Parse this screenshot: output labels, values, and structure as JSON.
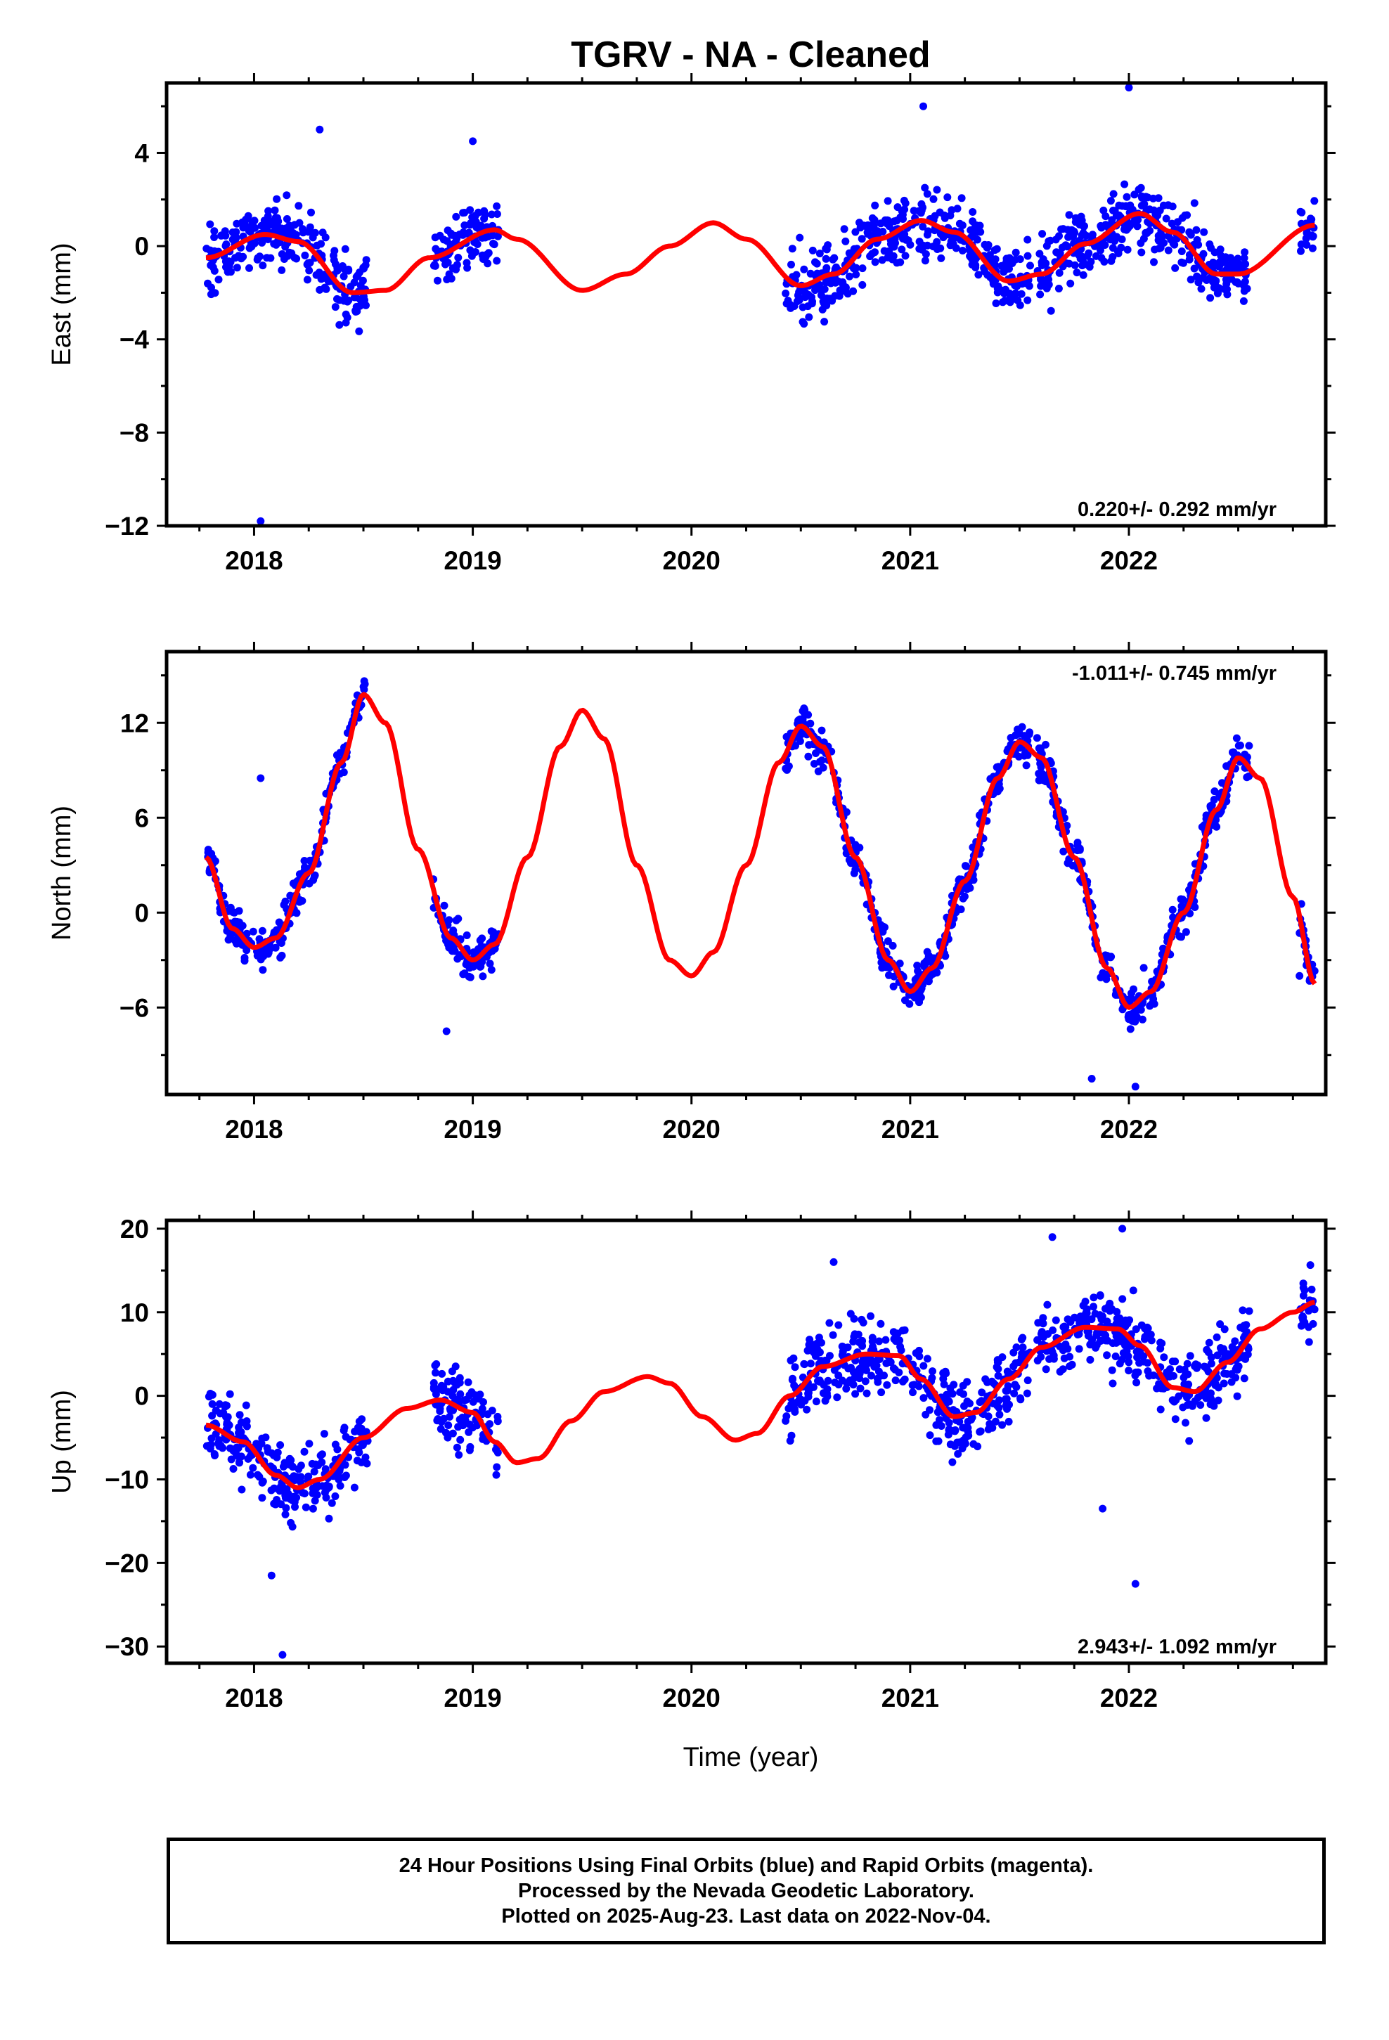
{
  "title": "TGRV  - NA - Cleaned",
  "xlabel": "Time (year)",
  "footer": {
    "line1": "24 Hour Positions Using Final Orbits (blue) and Rapid Orbits (magenta).",
    "line2": "Processed by the Nevada Geodetic Laboratory.",
    "line3": "Plotted on 2025-Aug-23. Last data on 2022-Nov-04."
  },
  "colors": {
    "points": "#0000ff",
    "fit": "#ff0000",
    "frame": "#000000"
  },
  "chart_data": [
    {
      "type": "scatter",
      "title": "TGRV  - NA - Cleaned",
      "ylabel": "East (mm)",
      "xlabel": "",
      "xlim": [
        2017.6,
        2022.9
      ],
      "ylim": [
        -12,
        7
      ],
      "xticks": [
        2018,
        2019,
        2020,
        2021,
        2022
      ],
      "yticks": [
        -12,
        -8,
        -4,
        0,
        4
      ],
      "rate": "0.220+/- 0.292 mm/yr",
      "rate_position": "bottom-right",
      "series": [
        {
          "kind": "observations",
          "segments": [
            [
              2017.78,
              2018.52
            ],
            [
              2018.82,
              2019.12
            ],
            [
              2020.43,
              2021.55
            ],
            [
              2021.58,
              2022.55
            ],
            [
              2022.78,
              2022.85
            ]
          ],
          "trend": [
            [
              2017.78,
              -0.5
            ],
            [
              2018.0,
              0.5
            ],
            [
              2018.15,
              0.4
            ],
            [
              2018.5,
              -2.0
            ],
            [
              2018.9,
              0.4
            ],
            [
              2019.12,
              0.7
            ]
          ],
          "noise": 1.3,
          "outliers": [
            [
              2018.03,
              -11.8
            ],
            [
              2018.3,
              5.0
            ],
            [
              2019.0,
              4.5
            ],
            [
              2021.06,
              6.0
            ],
            [
              2022.0,
              6.8
            ]
          ]
        },
        {
          "kind": "fit",
          "points": [
            [
              2017.78,
              -0.5
            ],
            [
              2018.05,
              0.5
            ],
            [
              2018.2,
              0.2
            ],
            [
              2018.45,
              -2.0
            ],
            [
              2018.6,
              -1.9
            ],
            [
              2018.8,
              -0.5
            ],
            [
              2019.1,
              0.7
            ],
            [
              2019.2,
              0.3
            ],
            [
              2019.5,
              -1.9
            ],
            [
              2019.7,
              -1.2
            ],
            [
              2019.9,
              0.0
            ],
            [
              2020.1,
              1.0
            ],
            [
              2020.25,
              0.3
            ],
            [
              2020.5,
              -1.7
            ],
            [
              2020.65,
              -1.2
            ],
            [
              2020.85,
              0.3
            ],
            [
              2021.05,
              1.1
            ],
            [
              2021.2,
              0.6
            ],
            [
              2021.45,
              -1.5
            ],
            [
              2021.6,
              -1.2
            ],
            [
              2021.8,
              0.1
            ],
            [
              2022.05,
              1.4
            ],
            [
              2022.2,
              0.6
            ],
            [
              2022.4,
              -1.2
            ],
            [
              2022.5,
              -1.2
            ],
            [
              2022.85,
              0.9
            ]
          ]
        }
      ]
    },
    {
      "type": "scatter",
      "ylabel": "North (mm)",
      "xlabel": "",
      "xlim": [
        2017.6,
        2022.9
      ],
      "ylim": [
        -11.5,
        16.5
      ],
      "xticks": [
        2018,
        2019,
        2020,
        2021,
        2022
      ],
      "yticks": [
        -6,
        0,
        6,
        12
      ],
      "rate": "-1.011+/- 0.745 mm/yr",
      "rate_position": "top-right",
      "series": [
        {
          "kind": "observations",
          "segments": [
            [
              2017.78,
              2018.52
            ],
            [
              2018.82,
              2019.12
            ],
            [
              2020.43,
              2021.55
            ],
            [
              2021.58,
              2022.55
            ],
            [
              2022.78,
              2022.85
            ]
          ],
          "noise": 1.2,
          "outliers": [
            [
              2018.03,
              8.5
            ],
            [
              2018.88,
              -7.5
            ],
            [
              2021.83,
              -10.5
            ],
            [
              2022.03,
              -11.0
            ],
            [
              2022.78,
              -4.0
            ]
          ]
        },
        {
          "kind": "fit",
          "points": [
            [
              2017.78,
              3.5
            ],
            [
              2017.9,
              -1.0
            ],
            [
              2018.0,
              -2.2
            ],
            [
              2018.1,
              -1.6
            ],
            [
              2018.25,
              2.5
            ],
            [
              2018.4,
              9.5
            ],
            [
              2018.5,
              13.8
            ],
            [
              2018.6,
              12.0
            ],
            [
              2018.75,
              4.0
            ],
            [
              2018.9,
              -1.6
            ],
            [
              2019.0,
              -3.0
            ],
            [
              2019.1,
              -2.0
            ],
            [
              2019.25,
              3.5
            ],
            [
              2019.4,
              10.5
            ],
            [
              2019.5,
              12.8
            ],
            [
              2019.6,
              11.0
            ],
            [
              2019.75,
              3.0
            ],
            [
              2019.9,
              -3.0
            ],
            [
              2020.0,
              -4.0
            ],
            [
              2020.1,
              -2.5
            ],
            [
              2020.25,
              3.0
            ],
            [
              2020.4,
              9.5
            ],
            [
              2020.5,
              11.8
            ],
            [
              2020.6,
              10.5
            ],
            [
              2020.75,
              3.5
            ],
            [
              2020.9,
              -3.0
            ],
            [
              2021.0,
              -5.0
            ],
            [
              2021.1,
              -3.5
            ],
            [
              2021.25,
              2.0
            ],
            [
              2021.4,
              8.5
            ],
            [
              2021.5,
              10.8
            ],
            [
              2021.6,
              9.8
            ],
            [
              2021.75,
              3.5
            ],
            [
              2021.9,
              -3.5
            ],
            [
              2022.0,
              -6.0
            ],
            [
              2022.1,
              -5.0
            ],
            [
              2022.25,
              0.0
            ],
            [
              2022.4,
              6.5
            ],
            [
              2022.5,
              9.8
            ],
            [
              2022.6,
              8.5
            ],
            [
              2022.75,
              1.0
            ],
            [
              2022.85,
              -4.5
            ]
          ]
        }
      ]
    },
    {
      "type": "scatter",
      "ylabel": "Up (mm)",
      "xlabel": "Time (year)",
      "xlim": [
        2017.6,
        2022.9
      ],
      "ylim": [
        -32,
        21
      ],
      "xticks": [
        2018,
        2019,
        2020,
        2021,
        2022
      ],
      "yticks": [
        -30,
        -20,
        -10,
        0,
        10,
        20
      ],
      "rate": "2.943+/- 1.092 mm/yr",
      "rate_position": "bottom-right",
      "series": [
        {
          "kind": "observations",
          "segments": [
            [
              2017.78,
              2018.52
            ],
            [
              2018.82,
              2019.12
            ],
            [
              2020.43,
              2021.55
            ],
            [
              2021.58,
              2022.55
            ],
            [
              2022.78,
              2022.85
            ]
          ],
          "noise": 4.2,
          "outliers": [
            [
              2018.13,
              -31.0
            ],
            [
              2018.08,
              -21.5
            ],
            [
              2021.88,
              -13.5
            ],
            [
              2022.03,
              -22.5
            ],
            [
              2021.97,
              20.0
            ],
            [
              2021.65,
              19.0
            ],
            [
              2020.65,
              16.0
            ]
          ]
        },
        {
          "kind": "fit",
          "points": [
            [
              2017.78,
              -3.5
            ],
            [
              2017.95,
              -5.5
            ],
            [
              2018.1,
              -9.5
            ],
            [
              2018.2,
              -11.0
            ],
            [
              2018.3,
              -10.0
            ],
            [
              2018.5,
              -5.0
            ],
            [
              2018.7,
              -1.5
            ],
            [
              2018.85,
              -0.5
            ],
            [
              2019.0,
              -2.0
            ],
            [
              2019.1,
              -5.5
            ],
            [
              2019.2,
              -8.0
            ],
            [
              2019.3,
              -7.5
            ],
            [
              2019.45,
              -3.0
            ],
            [
              2019.6,
              0.5
            ],
            [
              2019.8,
              2.3
            ],
            [
              2019.9,
              1.5
            ],
            [
              2020.05,
              -2.5
            ],
            [
              2020.2,
              -5.3
            ],
            [
              2020.3,
              -4.5
            ],
            [
              2020.45,
              0.0
            ],
            [
              2020.6,
              3.5
            ],
            [
              2020.8,
              5.0
            ],
            [
              2020.95,
              4.8
            ],
            [
              2021.05,
              2.0
            ],
            [
              2021.2,
              -2.5
            ],
            [
              2021.3,
              -2.0
            ],
            [
              2021.45,
              2.0
            ],
            [
              2021.6,
              5.8
            ],
            [
              2021.8,
              8.2
            ],
            [
              2021.95,
              8.0
            ],
            [
              2022.05,
              6.0
            ],
            [
              2022.2,
              1.0
            ],
            [
              2022.3,
              0.5
            ],
            [
              2022.45,
              4.0
            ],
            [
              2022.6,
              8.0
            ],
            [
              2022.75,
              10.0
            ],
            [
              2022.85,
              11.2
            ]
          ]
        }
      ]
    }
  ]
}
